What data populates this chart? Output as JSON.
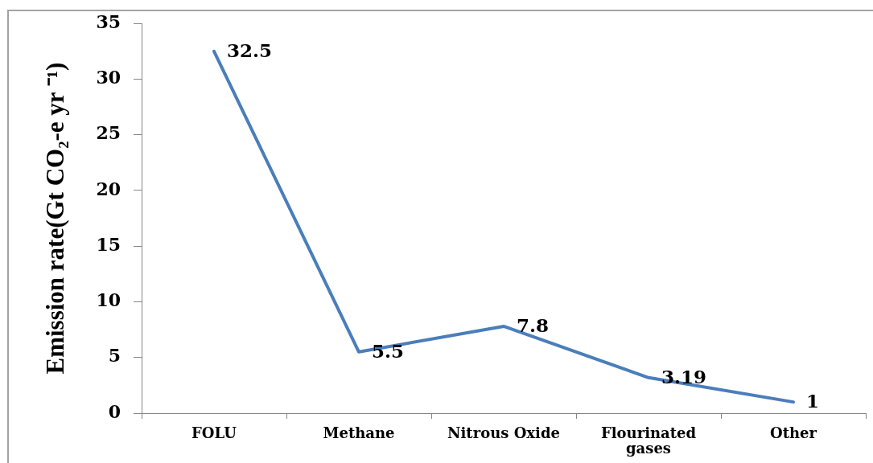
{
  "chart_data": {
    "type": "line",
    "ylabel": "Emission rate(Gt CO₂-e yr ⁻¹)",
    "categories": [
      "FOLU",
      "Methane",
      "Nitrous Oxide",
      "Flourinated gases",
      "Other"
    ],
    "series": [
      {
        "color": "#4a7ebb",
        "values": [
          32.5,
          5.5,
          7.8,
          3.19,
          1
        ]
      }
    ],
    "ylim": [
      0,
      35
    ],
    "yticks": [
      0,
      5,
      10,
      15,
      20,
      25,
      30,
      35
    ],
    "grid": false,
    "legend": false,
    "data_labels": true,
    "marker": "none"
  }
}
